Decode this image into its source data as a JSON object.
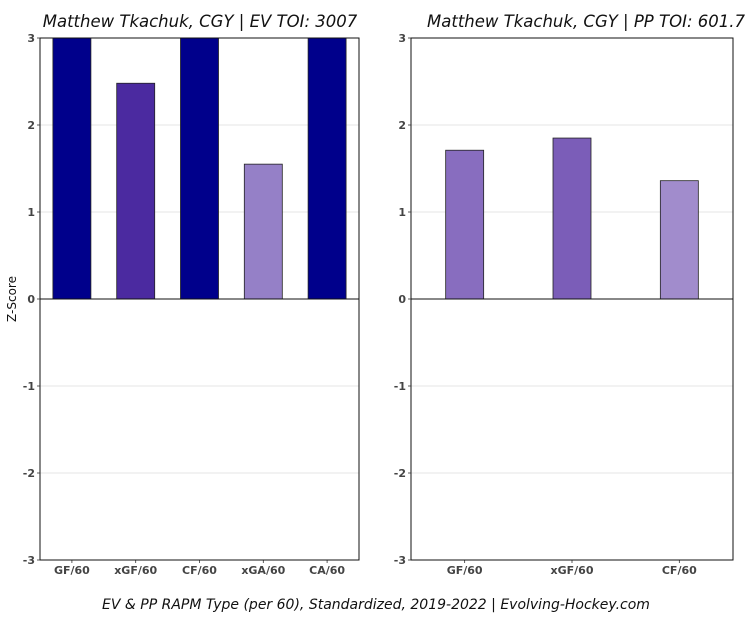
{
  "caption": "EV & PP RAPM Type (per 60), Standardized, 2019-2022    |    Evolving-Hockey.com",
  "chart_data": [
    {
      "type": "bar",
      "title": "Matthew Tkachuk, CGY  |  EV TOI: 3007",
      "ylabel": "Z-Score",
      "xlabel": "",
      "ylim": [
        -3,
        3
      ],
      "yticks": [
        -3,
        -2,
        -1,
        0,
        1,
        2,
        3
      ],
      "grid": true,
      "categories": [
        "GF/60",
        "xGF/60",
        "CF/60",
        "xGA/60",
        "CA/60"
      ],
      "values": [
        3,
        2.48,
        3,
        1.55,
        3
      ],
      "colors": [
        "#00008b",
        "#4b2aa0",
        "#00008b",
        "#9580c7",
        "#00008b"
      ]
    },
    {
      "type": "bar",
      "title": "Matthew Tkachuk, CGY  |  PP TOI: 601.7",
      "ylabel": "",
      "xlabel": "",
      "ylim": [
        -3,
        3
      ],
      "yticks": [
        -3,
        -2,
        -1,
        0,
        1,
        2,
        3
      ],
      "grid": true,
      "categories": [
        "GF/60",
        "xGF/60",
        "CF/60"
      ],
      "values": [
        1.71,
        1.85,
        1.36
      ],
      "colors": [
        "#886dbf",
        "#7b5db8",
        "#a18ccc"
      ]
    }
  ]
}
